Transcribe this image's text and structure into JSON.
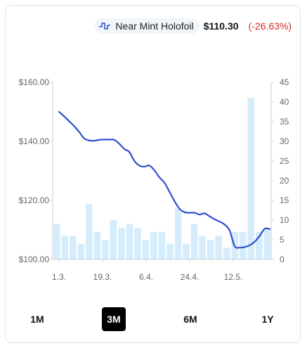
{
  "legend": {
    "series_name": "Near Mint Holofoil",
    "price": "$110.30",
    "change": "(-26.63%)",
    "line_color": "#2f4fce",
    "change_color": "#d02a2a"
  },
  "ranges": {
    "options": [
      "1M",
      "3M",
      "6M",
      "1Y"
    ],
    "selected": "3M"
  },
  "chart_data": {
    "type": "line",
    "title": "",
    "xlabel": "",
    "ylabel": "",
    "x_tick_labels": [
      "1.3.",
      "19.3.",
      "6.4.",
      "24.4.",
      "12.5."
    ],
    "y_left": {
      "ylim": [
        100,
        160
      ],
      "ticks": [
        "$100.00",
        "$120.00",
        "$140.00",
        "$160.00"
      ]
    },
    "y_right": {
      "ylim": [
        0,
        45
      ],
      "ticks": [
        "0",
        "5",
        "10",
        "15",
        "20",
        "25",
        "30",
        "35",
        "40",
        "45"
      ]
    },
    "grid": false,
    "series": [
      {
        "name": "Near Mint Holofoil",
        "kind": "line",
        "axis": "left",
        "color": "#2f4fce",
        "values": [
          150.0,
          148.5,
          146.8,
          145.2,
          143.2,
          141.0,
          140.3,
          140.2,
          140.5,
          140.6,
          140.6,
          140.5,
          139.2,
          137.4,
          136.4,
          133.4,
          131.8,
          131.4,
          131.8,
          130.2,
          127.8,
          126.0,
          123.0,
          119.8,
          117.2,
          116.0,
          115.8,
          115.8,
          115.2,
          115.6,
          114.6,
          113.6,
          112.8,
          111.8,
          109.8,
          104.5,
          104.0,
          104.2,
          104.8,
          106.0,
          108.0,
          110.4,
          110.3
        ]
      },
      {
        "kind": "bar",
        "axis": "right",
        "color": "#d4ecfb",
        "values": [
          9,
          6,
          6,
          4,
          14,
          7,
          5,
          10,
          8,
          9,
          8,
          5,
          7,
          7,
          4,
          13,
          4,
          9,
          6,
          5,
          6,
          3,
          7,
          7,
          41,
          7,
          8
        ]
      }
    ]
  }
}
